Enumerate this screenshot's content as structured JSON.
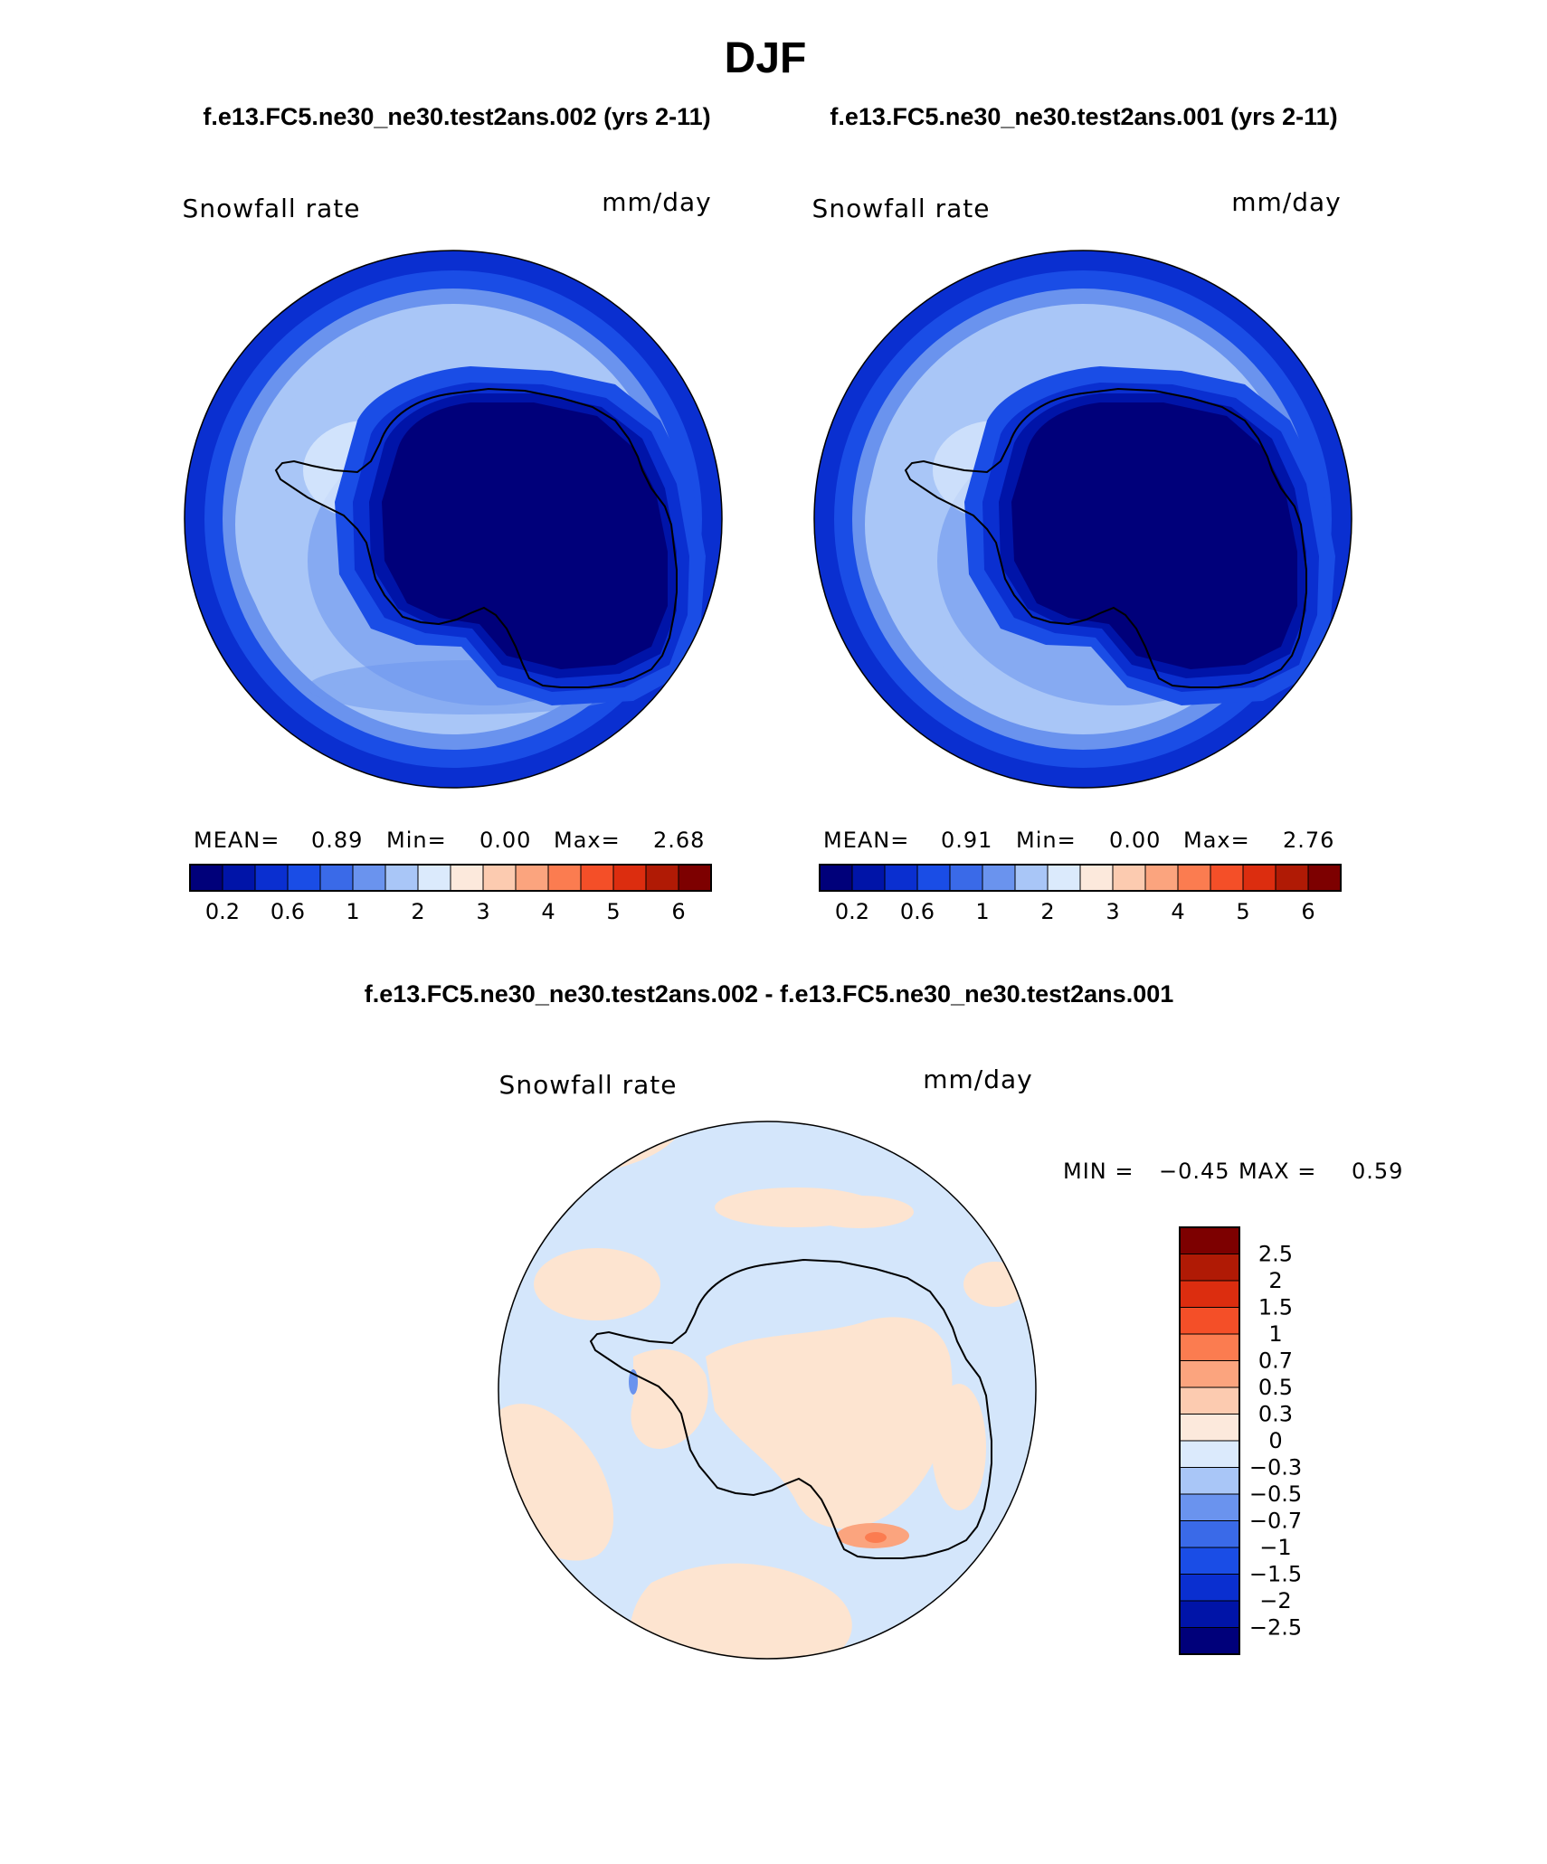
{
  "season": "DJF",
  "header": {
    "left_case": "f.e13.FC5.ne30_ne30.test2ans.002 (yrs 2-11)",
    "right_case": "f.e13.FC5.ne30_ne30.test2ans.001 (yrs 2-11)"
  },
  "diff_title": "f.e13.FC5.ne30_ne30.test2ans.002 - f.e13.FC5.ne30_ne30.test2ans.001",
  "colors": {
    "ocean_dark": "#00007a",
    "land_black": "#000000",
    "diff_pos": "#fde4d0",
    "diff_neg": "#d4e6fb"
  },
  "chart_data": [
    {
      "type": "heatmap",
      "projection": "south-polar-stereographic",
      "title": "Snowfall rate",
      "units": "mm/day",
      "case": "f.e13.FC5.ne30_ne30.test2ans.002",
      "years": "yrs 2-11",
      "stats": {
        "mean_label": "MEAN=",
        "mean": "0.89",
        "min_label": "Min=",
        "min": "0.00",
        "max_label": "Max=",
        "max": "2.68"
      },
      "levels": [
        0.1,
        0.2,
        0.4,
        0.6,
        0.8,
        1,
        1.5,
        2,
        2.5,
        3,
        3.5,
        4,
        4.5,
        5,
        5.5,
        6
      ],
      "colorbar_tick_labels": [
        "0.2",
        "0.6",
        "1",
        "2",
        "3",
        "4",
        "5",
        "6"
      ],
      "colorbar_colors": [
        "#00007a",
        "#0014a8",
        "#0a2fd0",
        "#1a4de6",
        "#3a6ae8",
        "#6a93ee",
        "#a9c6f7",
        "#dbeafc",
        "#fce9dc",
        "#fccbb0",
        "#fba47e",
        "#fb7c50",
        "#f44f28",
        "#dc2d0f",
        "#b01a05",
        "#7d0000"
      ]
    },
    {
      "type": "heatmap",
      "projection": "south-polar-stereographic",
      "title": "Snowfall rate",
      "units": "mm/day",
      "case": "f.e13.FC5.ne30_ne30.test2ans.001",
      "years": "yrs 2-11",
      "stats": {
        "mean_label": "MEAN=",
        "mean": "0.91",
        "min_label": "Min=",
        "min": "0.00",
        "max_label": "Max=",
        "max": "2.76"
      },
      "levels": [
        0.1,
        0.2,
        0.4,
        0.6,
        0.8,
        1,
        1.5,
        2,
        2.5,
        3,
        3.5,
        4,
        4.5,
        5,
        5.5,
        6
      ],
      "colorbar_tick_labels": [
        "0.2",
        "0.6",
        "1",
        "2",
        "3",
        "4",
        "5",
        "6"
      ],
      "colorbar_colors": [
        "#00007a",
        "#0014a8",
        "#0a2fd0",
        "#1a4de6",
        "#3a6ae8",
        "#6a93ee",
        "#a9c6f7",
        "#dbeafc",
        "#fce9dc",
        "#fccbb0",
        "#fba47e",
        "#fb7c50",
        "#f44f28",
        "#dc2d0f",
        "#b01a05",
        "#7d0000"
      ]
    },
    {
      "type": "heatmap",
      "projection": "south-polar-stereographic",
      "title": "Snowfall rate",
      "units": "mm/day",
      "case": "f.e13.FC5.ne30_ne30.test2ans.002 - f.e13.FC5.ne30_ne30.test2ans.001",
      "stats": {
        "min_label": "MIN =",
        "min": "−0.45",
        "max_label": "MAX =",
        "max": "0.59"
      },
      "levels": [
        -2.5,
        -2,
        -1.5,
        -1,
        -0.7,
        -0.5,
        -0.3,
        0,
        0.3,
        0.5,
        0.7,
        1,
        1.5,
        2,
        2.5
      ],
      "colorbar_tick_labels": [
        "2.5",
        "2",
        "1.5",
        "1",
        "0.7",
        "0.5",
        "0.3",
        "0",
        "−0.3",
        "−0.5",
        "−0.7",
        "−1",
        "−1.5",
        "−2",
        "−2.5"
      ],
      "colorbar_colors": [
        "#7d0000",
        "#b01a05",
        "#dc2d0f",
        "#f44f28",
        "#fb7c50",
        "#fba47e",
        "#fccbb0",
        "#fce9dc",
        "#dbeafc",
        "#a9c6f7",
        "#6a93ee",
        "#3a6ae8",
        "#1a4de6",
        "#0a2fd0",
        "#0014a8",
        "#00007a"
      ]
    }
  ]
}
